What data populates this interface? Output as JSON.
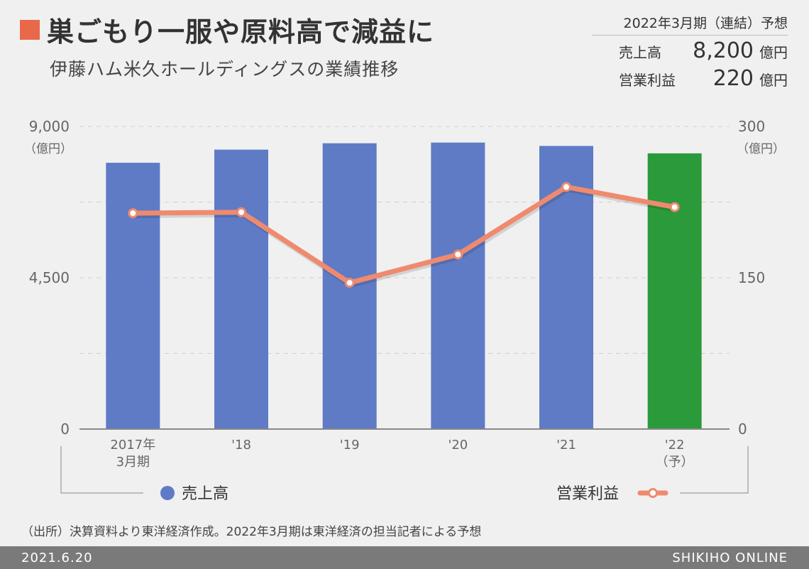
{
  "header": {
    "title": "巣ごもり一服や原料高で減益に",
    "subtitle": "伊藤ハム米久ホールディングスの業績推移",
    "title_accent": "#e8694a"
  },
  "forecast": {
    "heading": "2022年3月期（連結）予想",
    "rows": [
      {
        "label": "売上高",
        "value": "8,200",
        "unit": "億円"
      },
      {
        "label": "営業利益",
        "value": "220",
        "unit": "億円"
      }
    ]
  },
  "chart_data": {
    "type": "bar+line",
    "categories": [
      [
        "2017年",
        "3月期"
      ],
      [
        "'18"
      ],
      [
        "'19"
      ],
      [
        "'20"
      ],
      [
        "'21"
      ],
      [
        "'22",
        "（予）"
      ]
    ],
    "left_axis": {
      "ticks": [
        "9,000",
        "4,500",
        "0"
      ],
      "unit": "（億円）",
      "ylim": [
        0,
        9000
      ]
    },
    "right_axis": {
      "ticks": [
        "300",
        "150",
        "0"
      ],
      "unit": "（億円）",
      "ylim": [
        0,
        300
      ]
    },
    "grid": true,
    "series": [
      {
        "name": "売上高",
        "type": "bar",
        "axis": "left",
        "values": [
          7920,
          8310,
          8500,
          8520,
          8420,
          8200
        ],
        "colors": [
          "#5f7bc5",
          "#5f7bc5",
          "#5f7bc5",
          "#5f7bc5",
          "#5f7bc5",
          "#2a9a3a"
        ]
      },
      {
        "name": "営業利益",
        "type": "line",
        "axis": "right",
        "values": [
          214,
          215,
          145,
          173,
          240,
          220
        ],
        "color": "#ef8a6f"
      }
    ],
    "legend": {
      "placement": "bottom"
    }
  },
  "source": "（出所）決算資料より東洋経済作成。2022年3月期は東洋経済の担当記者による予想",
  "footer": {
    "date": "2021.6.20",
    "brand": "SHIKIHO ONLINE"
  }
}
